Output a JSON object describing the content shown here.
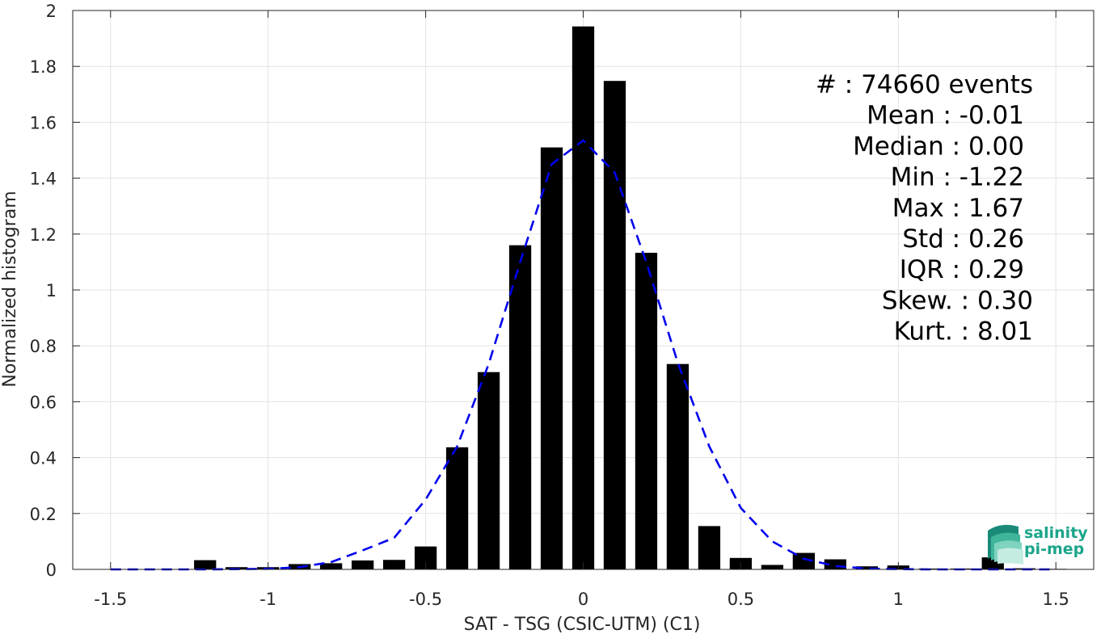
{
  "chart_data": {
    "type": "bar",
    "xlabel": "SAT - TSG (CSIC-UTM) (C1)",
    "ylabel": "Normalized histogram",
    "xlim": [
      -1.62,
      1.62
    ],
    "ylim": [
      0,
      2
    ],
    "xticks": [
      -1.5,
      -1,
      -0.5,
      0,
      0.5,
      1,
      1.5
    ],
    "xtick_labels": [
      "-1.5",
      "-1",
      "-0.5",
      "0",
      "0.5",
      "1",
      "1.5"
    ],
    "yticks": [
      0,
      0.2,
      0.4,
      0.6,
      0.8,
      1,
      1.2,
      1.4,
      1.6,
      1.8,
      2
    ],
    "ytick_labels": [
      "0",
      "0.2",
      "0.4",
      "0.6",
      "0.8",
      "1",
      "1.2",
      "1.4",
      "1.6",
      "1.8",
      "2"
    ],
    "grid": true,
    "bar_width": 0.07,
    "bars": {
      "x": [
        -1.2,
        -1.1,
        -1.0,
        -0.9,
        -0.8,
        -0.7,
        -0.6,
        -0.5,
        -0.4,
        -0.3,
        -0.2,
        -0.1,
        0.0,
        0.1,
        0.2,
        0.3,
        0.4,
        0.5,
        0.6,
        0.7,
        0.8,
        0.9,
        1.0,
        1.1,
        1.2,
        1.3,
        1.4,
        1.5
      ],
      "values": [
        0.033,
        0.008,
        0.008,
        0.019,
        0.022,
        0.032,
        0.034,
        0.082,
        0.437,
        0.706,
        1.16,
        1.51,
        1.943,
        1.748,
        1.133,
        0.735,
        0.155,
        0.041,
        0.016,
        0.059,
        0.036,
        0.011,
        0.014,
        0.003,
        0.003,
        0.043,
        0.004,
        0.002
      ],
      "color": "#000000"
    },
    "fit_curve": {
      "style": "dashed",
      "color": "#0000ee",
      "x": [
        -1.5,
        -1.4,
        -1.3,
        -1.2,
        -1.1,
        -1.0,
        -0.9,
        -0.8,
        -0.7,
        -0.6,
        -0.5,
        -0.4,
        -0.3,
        -0.2,
        -0.1,
        0.0,
        0.1,
        0.2,
        0.3,
        0.4,
        0.5,
        0.6,
        0.7,
        0.8,
        0.9,
        1.0,
        1.1,
        1.2,
        1.3,
        1.4,
        1.5
      ],
      "y": [
        0.0,
        0.0,
        0.0,
        0.0,
        0.001,
        0.002,
        0.008,
        0.026,
        0.068,
        0.113,
        0.25,
        0.44,
        0.735,
        1.1,
        1.45,
        1.535,
        1.42,
        1.1,
        0.74,
        0.44,
        0.22,
        0.1,
        0.038,
        0.012,
        0.003,
        0.001,
        0.0,
        0.0,
        0.0,
        0.0,
        0.0
      ]
    },
    "annotations": [
      "#  : 74660 events",
      "Mean : -0.01",
      "Median : 0.00",
      "Min : -1.22",
      "Max : 1.67",
      "Std : 0.26",
      "IQR : 0.29",
      "Skew. : 0.30",
      "Kurt. : 8.01"
    ]
  },
  "logo": {
    "line1": "salinity",
    "line2": "pi-mep",
    "color": "#1aa58a"
  }
}
